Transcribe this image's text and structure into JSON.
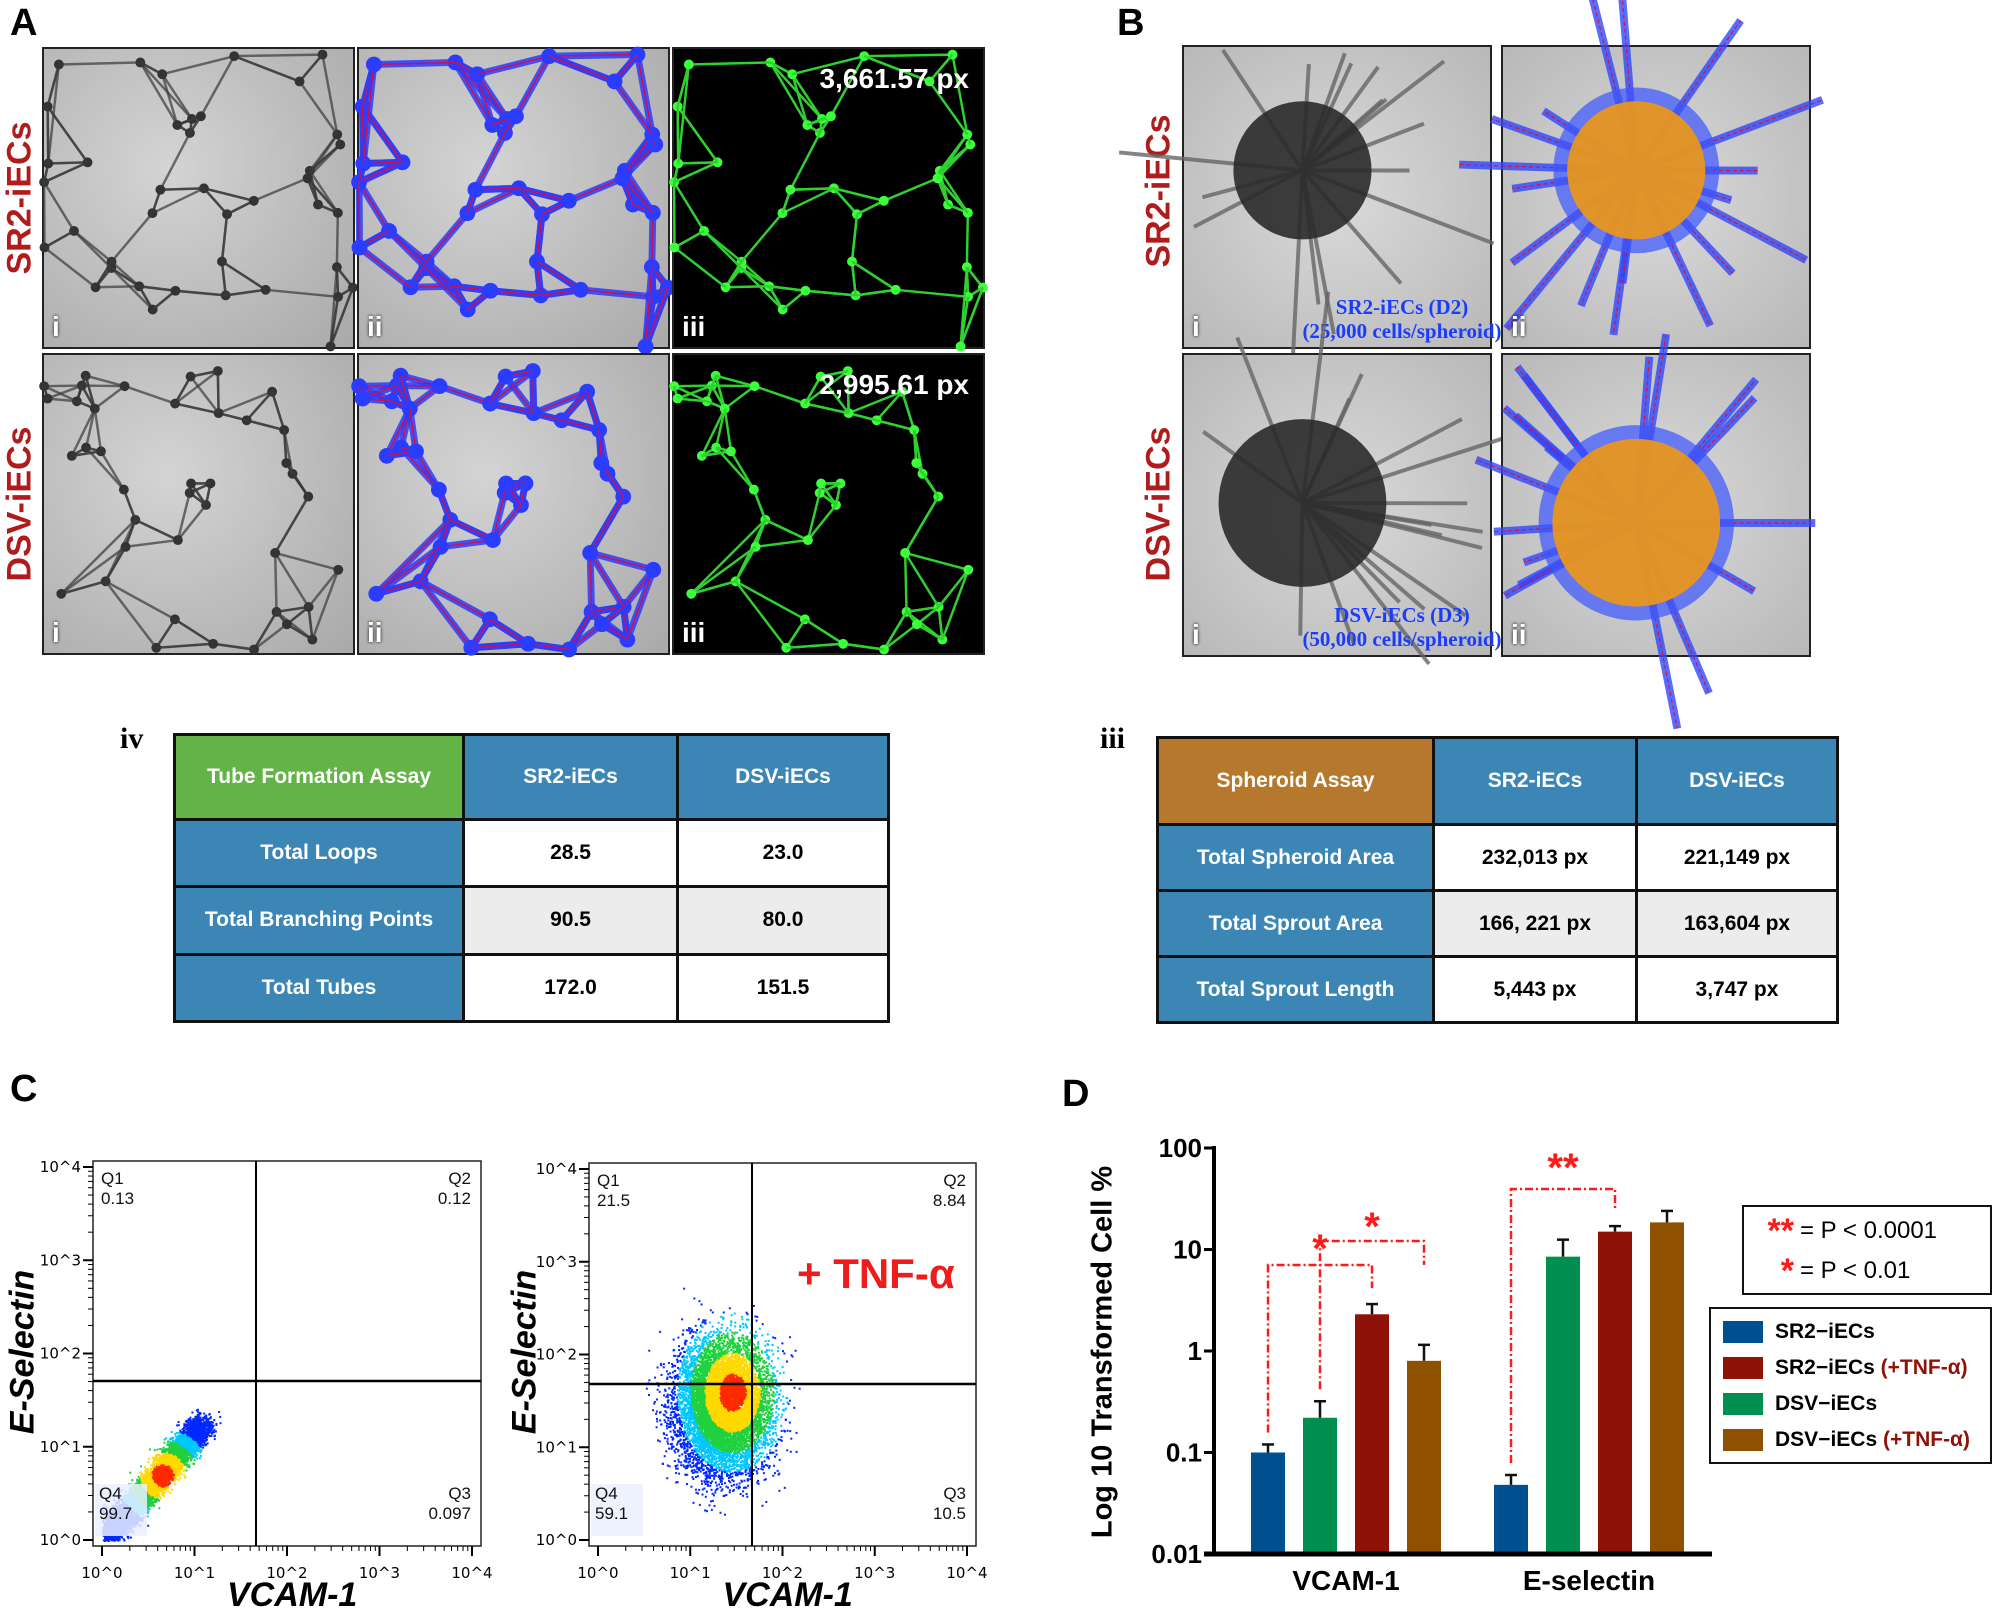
{
  "panels": {
    "a": "A",
    "b": "B",
    "c": "C",
    "d": "D"
  },
  "panel_a": {
    "rows": [
      {
        "label": "SR2-iECs",
        "images": [
          "i",
          "ii",
          "iii"
        ],
        "measurement": "3,661.57 px"
      },
      {
        "label": "DSV-iECs",
        "images": [
          "i",
          "ii",
          "iii"
        ],
        "measurement": "2,995.61 px"
      }
    ]
  },
  "panel_b": {
    "rows": [
      {
        "label": "SR2-iECs",
        "images": [
          "i",
          "ii"
        ],
        "caption_line1": "SR2-iECs (D2)",
        "caption_line2": "(25,000 cells/spheroid)"
      },
      {
        "label": "DSV-iECs",
        "images": [
          "i",
          "ii"
        ],
        "caption_line1": "DSV-iECs (D3)",
        "caption_line2": "(50,000 cells/spheroid)"
      }
    ]
  },
  "tube_table": {
    "label": "iv",
    "headers": [
      "Tube Formation Assay",
      "SR2-iECs",
      "DSV-iECs"
    ],
    "rows": [
      [
        "Total Loops",
        "28.5",
        "23.0"
      ],
      [
        "Total Branching Points",
        "90.5",
        "80.0"
      ],
      [
        "Total Tubes",
        "172.0",
        "151.5"
      ]
    ]
  },
  "spheroid_table": {
    "label": "iii",
    "headers": [
      "Spheroid Assay",
      "SR2-iECs",
      "DSV-iECs"
    ],
    "rows": [
      [
        "Total Spheroid Area",
        "232,013 px",
        "221,149 px"
      ],
      [
        "Total Sprout Area",
        "166, 221 px",
        "163,604 px"
      ],
      [
        "Total Sprout Length",
        "5,443 px",
        "3,747 px"
      ]
    ]
  },
  "flow_plots": [
    {
      "xlabel": "VCAM-1",
      "ylabel": "E-Selectin",
      "annotation": "",
      "quadrants": {
        "Q1": "0.13",
        "Q2": "0.12",
        "Q3": "0.097",
        "Q4": "99.7"
      }
    },
    {
      "xlabel": "VCAM-1",
      "ylabel": "E-Selectin",
      "annotation": "+ TNF-α",
      "quadrants": {
        "Q1": "21.5",
        "Q2": "8.84",
        "Q3": "10.5",
        "Q4": "59.1"
      }
    }
  ],
  "flow_axis_ticks": [
    "10^0",
    "10^1",
    "10^2",
    "10^3",
    "10^4"
  ],
  "chart_data": {
    "type": "bar",
    "ylabel": "Log 10 Transformed Cell %",
    "yscale": "log",
    "ylim": [
      0.01,
      100
    ],
    "yticks": [
      "100",
      "10",
      "1",
      "0.1",
      "0.01"
    ],
    "categories": [
      "VCAM-1",
      "E-selectin"
    ],
    "series": [
      {
        "name": "SR2−iECs",
        "suffix": "",
        "color": "#00508f",
        "values": [
          0.1,
          0.048
        ],
        "error_upper": [
          0.12,
          0.06
        ]
      },
      {
        "name": "SR2−iECs",
        "suffix": "(+TNF-α)",
        "color": "#8f1208",
        "values": [
          2.3,
          15
        ],
        "error_upper": [
          2.9,
          17
        ]
      },
      {
        "name": "DSV−iECs",
        "suffix": "",
        "color": "#008f50",
        "values": [
          0.22,
          8.5
        ],
        "error_upper": [
          0.32,
          12.5
        ]
      },
      {
        "name": "DSV−iECs",
        "suffix": "(+TNF-α)",
        "color": "#8f5000",
        "values": [
          0.8,
          18.5
        ],
        "error_upper": [
          1.15,
          24
        ]
      }
    ],
    "bar_order": [
      0,
      2,
      1,
      3
    ],
    "comparisons": [
      {
        "category": "VCAM-1",
        "from_series": 0,
        "to_series": 1,
        "mark": "*"
      },
      {
        "category": "VCAM-1",
        "from_series": 2,
        "to_series": 3,
        "mark": "*"
      },
      {
        "category": "E-selectin",
        "from_series": 0,
        "to_series": 1,
        "mark": "**"
      }
    ],
    "significance_legend": [
      {
        "mark": "**",
        "text": "= P < 0.0001"
      },
      {
        "mark": "*",
        "text": "= P < 0.01"
      }
    ],
    "accent_color": "#ff1a1a",
    "legend_placement": "right"
  }
}
